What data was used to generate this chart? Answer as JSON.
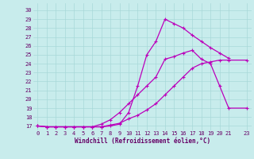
{
  "title": "",
  "xlabel": "Windchill (Refroidissement éolien,°C)",
  "bg_color": "#c8ecec",
  "grid_color": "#a8d8d8",
  "line_color": "#bb00bb",
  "xlim": [
    -0.5,
    23.5
  ],
  "ylim": [
    16.5,
    30.8
  ],
  "xticks": [
    0,
    1,
    2,
    3,
    4,
    5,
    6,
    7,
    8,
    9,
    10,
    11,
    12,
    13,
    14,
    15,
    16,
    17,
    18,
    19,
    20,
    21,
    23
  ],
  "yticks": [
    17,
    18,
    19,
    20,
    21,
    22,
    23,
    24,
    25,
    26,
    27,
    28,
    29,
    30
  ],
  "line1_x": [
    0,
    1,
    2,
    3,
    4,
    5,
    6,
    7,
    8,
    9,
    10,
    11,
    12,
    13,
    14,
    15,
    16,
    17,
    18,
    19,
    20,
    21,
    23
  ],
  "line1_y": [
    17,
    16.9,
    16.9,
    16.9,
    16.9,
    16.9,
    16.9,
    17.2,
    17.7,
    18.5,
    19.5,
    20.5,
    21.5,
    22.5,
    24.5,
    24.8,
    25.2,
    25.5,
    24.5,
    24.0,
    21.5,
    19.0,
    19.0
  ],
  "line2_x": [
    0,
    1,
    2,
    3,
    4,
    5,
    6,
    7,
    8,
    9,
    10,
    11,
    12,
    13,
    14,
    15,
    16,
    17,
    18,
    19,
    20,
    21,
    23
  ],
  "line2_y": [
    17,
    16.9,
    16.9,
    16.9,
    16.9,
    16.9,
    16.9,
    16.9,
    17.1,
    17.3,
    17.8,
    18.2,
    18.8,
    19.5,
    20.5,
    21.5,
    22.5,
    23.5,
    24.0,
    24.2,
    24.4,
    24.4,
    24.4
  ],
  "line3_x": [
    0,
    1,
    2,
    3,
    4,
    5,
    6,
    7,
    8,
    9,
    10,
    11,
    12,
    13,
    14,
    15,
    16,
    17,
    18,
    19,
    20,
    21
  ],
  "line3_y": [
    17,
    16.9,
    16.9,
    16.9,
    16.9,
    16.9,
    16.9,
    16.9,
    17.0,
    17.2,
    18.5,
    21.5,
    25.0,
    26.5,
    29.0,
    28.5,
    28.0,
    27.2,
    26.5,
    25.8,
    25.2,
    24.6
  ]
}
